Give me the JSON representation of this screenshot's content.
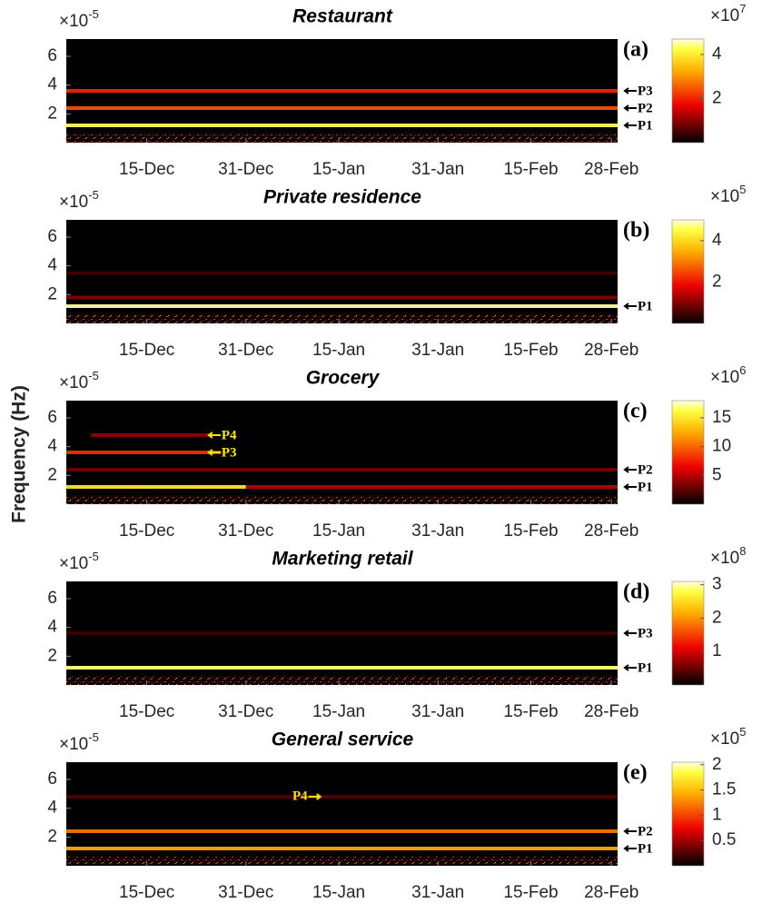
{
  "ylabel": "Frequency (Hz)",
  "chart_data": [
    {
      "type": "spectrogram",
      "title": "Restaurant",
      "panel_label": "(a)",
      "y_multiplier": {
        "base": "×10",
        "exp": "-5"
      },
      "ylim": [
        0,
        7.2
      ],
      "yticks": [
        2,
        4,
        6
      ],
      "xlim": [
        1,
        90
      ],
      "xticks": [
        {
          "value": 14,
          "label": "15-Dec"
        },
        {
          "value": 30,
          "label": "31-Dec"
        },
        {
          "value": 45,
          "label": "15-Jan"
        },
        {
          "value": 61,
          "label": "31-Jan"
        },
        {
          "value": 76,
          "label": "15-Feb"
        },
        {
          "value": 89,
          "label": "28-Feb"
        }
      ],
      "colorbar": {
        "multiplier": {
          "base": "×10",
          "exp": "7"
        },
        "clim": [
          0,
          4.7
        ],
        "ticks": [
          2,
          4
        ]
      },
      "bands": [
        {
          "frequency": 1.2,
          "intensity": 4.3
        },
        {
          "frequency": 2.4,
          "intensity": 2.4
        },
        {
          "frequency": 3.6,
          "intensity": 2.0
        }
      ],
      "annotations": [
        {
          "label": "P3",
          "y": 3.6
        },
        {
          "label": "P2",
          "y": 2.4
        },
        {
          "label": "P1",
          "y": 1.2
        }
      ]
    },
    {
      "type": "spectrogram",
      "title": "Private residence",
      "panel_label": "(b)",
      "y_multiplier": {
        "base": "×10",
        "exp": "-5"
      },
      "ylim": [
        0,
        7.2
      ],
      "yticks": [
        2,
        4,
        6
      ],
      "xlim": [
        1,
        90
      ],
      "xticks": [
        {
          "value": 14,
          "label": "15-Dec"
        },
        {
          "value": 30,
          "label": "31-Dec"
        },
        {
          "value": 45,
          "label": "15-Jan"
        },
        {
          "value": 61,
          "label": "31-Jan"
        },
        {
          "value": 76,
          "label": "15-Feb"
        },
        {
          "value": 89,
          "label": "28-Feb"
        }
      ],
      "colorbar": {
        "multiplier": {
          "base": "×10",
          "exp": "5"
        },
        "clim": [
          0,
          5
        ],
        "ticks": [
          2,
          4
        ]
      },
      "bands": [
        {
          "frequency": 1.2,
          "intensity": 4.8
        },
        {
          "frequency": 1.8,
          "intensity": 1.0
        },
        {
          "frequency": 3.5,
          "intensity": 0.5
        }
      ],
      "annotations": [
        {
          "label": "P1",
          "y": 1.2
        }
      ]
    },
    {
      "type": "spectrogram",
      "title": "Grocery",
      "panel_label": "(c)",
      "y_multiplier": {
        "base": "×10",
        "exp": "-5"
      },
      "ylim": [
        0,
        7.2
      ],
      "yticks": [
        2,
        4,
        6
      ],
      "xlim": [
        1,
        90
      ],
      "xticks": [
        {
          "value": 14,
          "label": "15-Dec"
        },
        {
          "value": 30,
          "label": "31-Dec"
        },
        {
          "value": 45,
          "label": "15-Jan"
        },
        {
          "value": 61,
          "label": "31-Jan"
        },
        {
          "value": 76,
          "label": "15-Feb"
        },
        {
          "value": 89,
          "label": "28-Feb"
        }
      ],
      "colorbar": {
        "multiplier": {
          "base": "×10",
          "exp": "6"
        },
        "clim": [
          0,
          18
        ],
        "ticks": [
          5,
          10,
          15
        ]
      },
      "bands": [
        {
          "frequency": 1.2,
          "intensity": 15,
          "from": 1,
          "to": 30
        },
        {
          "frequency": 1.2,
          "intensity": 5,
          "from": 30,
          "to": 90
        },
        {
          "frequency": 2.4,
          "intensity": 3
        },
        {
          "frequency": 3.6,
          "intensity": 8,
          "from": 1,
          "to": 26
        },
        {
          "frequency": 4.8,
          "intensity": 4,
          "from": 5,
          "to": 24
        }
      ],
      "annotations": [
        {
          "label": "P4",
          "y": 4.8,
          "x": 24,
          "color": "#ffe600"
        },
        {
          "label": "P3",
          "y": 3.6,
          "x": 24,
          "color": "#ffe600"
        },
        {
          "label": "P2",
          "y": 2.4
        },
        {
          "label": "P1",
          "y": 1.2
        }
      ]
    },
    {
      "type": "spectrogram",
      "title": "Marketing retail",
      "panel_label": "(d)",
      "y_multiplier": {
        "base": "×10",
        "exp": "-5"
      },
      "ylim": [
        0,
        7.2
      ],
      "yticks": [
        2,
        4,
        6
      ],
      "xlim": [
        1,
        90
      ],
      "xticks": [
        {
          "value": 14,
          "label": "15-Dec"
        },
        {
          "value": 30,
          "label": "31-Dec"
        },
        {
          "value": 45,
          "label": "15-Jan"
        },
        {
          "value": 61,
          "label": "31-Jan"
        },
        {
          "value": 76,
          "label": "15-Feb"
        },
        {
          "value": 89,
          "label": "28-Feb"
        }
      ],
      "colorbar": {
        "multiplier": {
          "base": "×10",
          "exp": "8"
        },
        "clim": [
          0,
          3.1
        ],
        "ticks": [
          1,
          2,
          3
        ]
      },
      "bands": [
        {
          "frequency": 1.2,
          "intensity": 2.9
        },
        {
          "frequency": 3.6,
          "intensity": 0.3
        }
      ],
      "annotations": [
        {
          "label": "P3",
          "y": 3.6
        },
        {
          "label": "P1",
          "y": 1.2
        }
      ]
    },
    {
      "type": "spectrogram",
      "title": "General service",
      "panel_label": "(e)",
      "y_multiplier": {
        "base": "×10",
        "exp": "-5"
      },
      "ylim": [
        0,
        7.2
      ],
      "yticks": [
        2,
        4,
        6
      ],
      "xlim": [
        1,
        90
      ],
      "xticks": [
        {
          "value": 14,
          "label": "15-Dec"
        },
        {
          "value": 30,
          "label": "31-Dec"
        },
        {
          "value": 45,
          "label": "15-Jan"
        },
        {
          "value": 61,
          "label": "31-Jan"
        },
        {
          "value": 76,
          "label": "15-Feb"
        },
        {
          "value": 89,
          "label": "28-Feb"
        }
      ],
      "colorbar": {
        "multiplier": {
          "base": "×10",
          "exp": "5"
        },
        "clim": [
          0,
          2.05
        ],
        "ticks": [
          0.5,
          1,
          1.5,
          2
        ]
      },
      "bands": [
        {
          "frequency": 1.2,
          "intensity": 1.4
        },
        {
          "frequency": 2.4,
          "intensity": 1.2
        },
        {
          "frequency": 4.8,
          "intensity": 0.25
        }
      ],
      "annotations": [
        {
          "label": "P4",
          "y": 4.8,
          "x": 42,
          "color": "#ffe600",
          "side": "left"
        },
        {
          "label": "P2",
          "y": 2.4
        },
        {
          "label": "P1",
          "y": 1.2
        }
      ]
    }
  ]
}
